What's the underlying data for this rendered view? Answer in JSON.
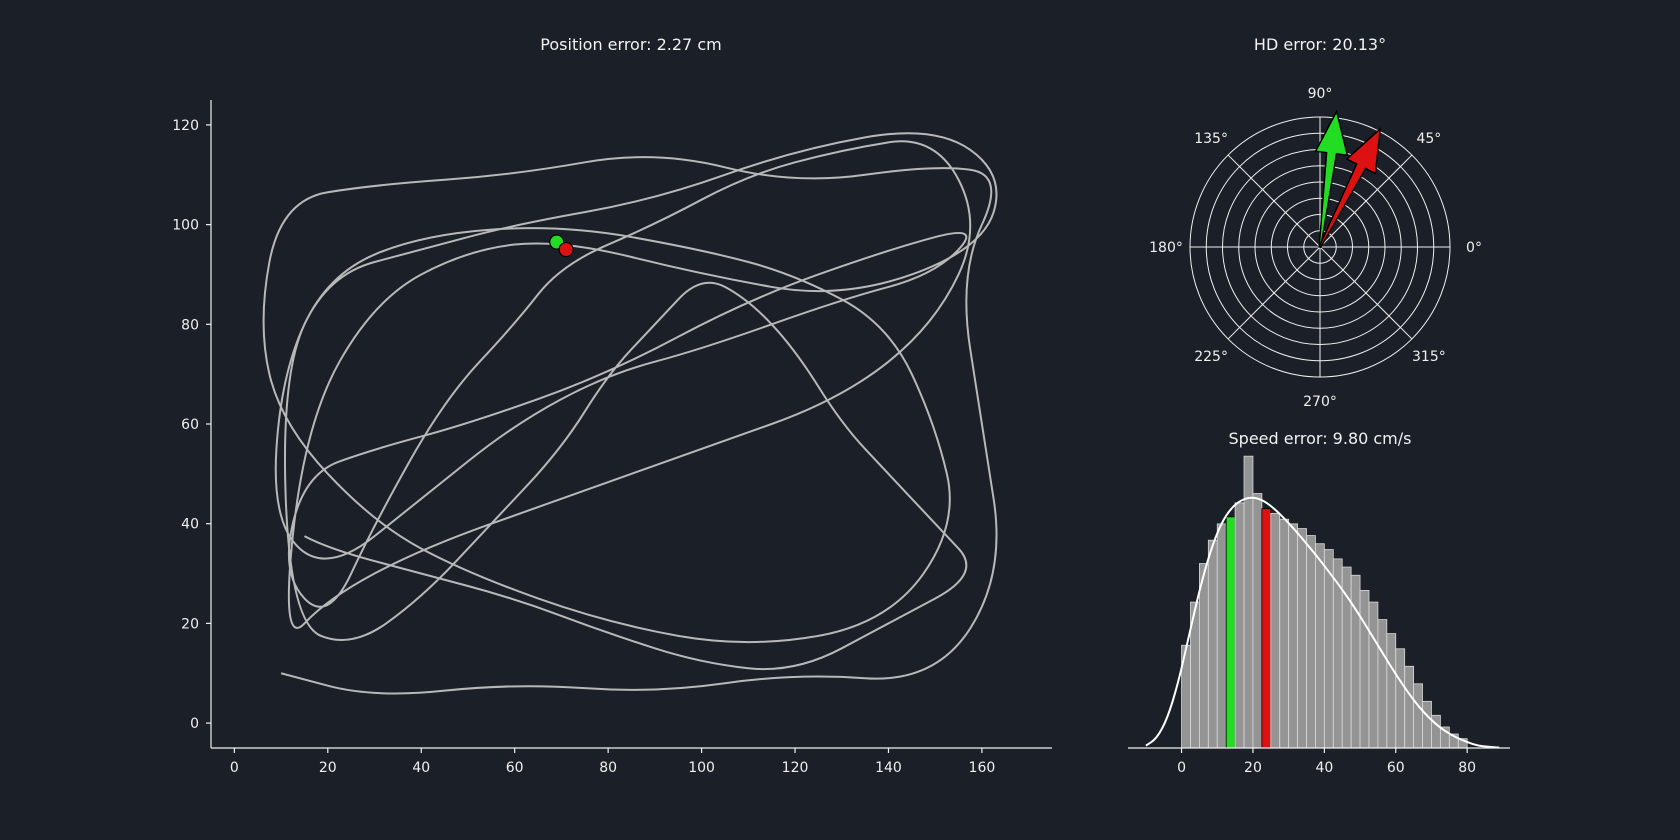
{
  "colors": {
    "background": "#1b1f27",
    "trajectory": "#b8b8b8",
    "true_marker": "#22dd22",
    "pred_marker": "#dd1111",
    "axis": "#f0f0f0",
    "kde": "#ffffff",
    "histogram": "#a9a9a9"
  },
  "chart_data": [
    {
      "type": "line",
      "title": "Position error: 2.27 cm",
      "xlim": [
        -5,
        175
      ],
      "ylim": [
        -5,
        125
      ],
      "xticks": [
        0,
        20,
        40,
        60,
        80,
        100,
        120,
        140,
        160
      ],
      "yticks": [
        0,
        20,
        40,
        60,
        80,
        100,
        120
      ],
      "series": [
        {
          "x": [
            10,
            30,
            60,
            90,
            120,
            150,
            165,
            160,
            155,
            165,
            150,
            120,
            90,
            60,
            30,
            10,
            5,
            10,
            30,
            50,
            80,
            110,
            140,
            155,
            150,
            140,
            120,
            100,
            70,
            40,
            20,
            10,
            8,
            20,
            40,
            60,
            80,
            100,
            130,
            150,
            160,
            140,
            110,
            80,
            50,
            30,
            15,
            10,
            20,
            30,
            45,
            60,
            70,
            90,
            110,
            130,
            150,
            160,
            150,
            130,
            100,
            70,
            40,
            20,
            10,
            15,
            30,
            50,
            70,
            100,
            130,
            160,
            165,
            150,
            120,
            90,
            60,
            40,
            20,
            10,
            12,
            25,
            40,
            55,
            70,
            80,
            90,
            100,
            110,
            120,
            130,
            140,
            150,
            160,
            140,
            120,
            100,
            80,
            60,
            40,
            20,
            10
          ],
          "y": [
            10,
            5,
            8,
            6,
            10,
            8,
            30,
            60,
            90,
            110,
            112,
            108,
            115,
            110,
            108,
            105,
            80,
            60,
            40,
            30,
            20,
            15,
            20,
            40,
            60,
            80,
            90,
            95,
            100,
            98,
            90,
            70,
            40,
            30,
            45,
            60,
            70,
            75,
            85,
            90,
            100,
            95,
            85,
            70,
            60,
            55,
            50,
            30,
            20,
            40,
            65,
            80,
            92,
            100,
            110,
            115,
            118,
            100,
            80,
            65,
            55,
            45,
            35,
            25,
            15,
            60,
            85,
            95,
            97,
            90,
            85,
            95,
            110,
            120,
            115,
            105,
            100,
            95,
            90,
            70,
            20,
            15,
            25,
            40,
            55,
            70,
            80,
            90,
            85,
            75,
            60,
            50,
            40,
            30,
            20,
            10,
            12,
            18,
            25,
            30,
            35,
            40
          ]
        }
      ],
      "markers": [
        {
          "label": "true",
          "x": 69,
          "y": 96.5,
          "color": "#22dd22"
        },
        {
          "label": "predicted",
          "x": 71,
          "y": 95,
          "color": "#dd1111"
        }
      ]
    },
    {
      "type": "polar",
      "title": "HD error: 20.13°",
      "angle_ticks": [
        "0°",
        "45°",
        "90°",
        "135°",
        "180°",
        "225°",
        "270°",
        "315°"
      ],
      "radial_rings": 8,
      "arrows": [
        {
          "label": "true",
          "angle_deg": 83,
          "length": 1.05,
          "color": "#22dd22"
        },
        {
          "label": "predicted",
          "angle_deg": 63,
          "length": 1.02,
          "color": "#dd1111"
        }
      ]
    },
    {
      "type": "bar",
      "title": "Speed error: 9.80 cm/s",
      "xlim": [
        -15,
        92
      ],
      "ylim": [
        0,
        0.0245
      ],
      "xticks": [
        0,
        20,
        40,
        60,
        80
      ],
      "bin_width": 2.5,
      "bin_start": 0,
      "values": [
        0.0088,
        0.0125,
        0.0158,
        0.0178,
        0.0192,
        0.0198,
        0.021,
        0.025,
        0.0218,
        0.0205,
        0.0201,
        0.0196,
        0.0192,
        0.0188,
        0.0182,
        0.0175,
        0.017,
        0.0162,
        0.0155,
        0.0148,
        0.0135,
        0.0125,
        0.011,
        0.0098,
        0.0085,
        0.007,
        0.0055,
        0.004,
        0.0028,
        0.0018,
        0.0012,
        0.0008
      ],
      "highlights": [
        {
          "label": "true",
          "bin_index": 5,
          "color": "#22dd22"
        },
        {
          "label": "predicted",
          "bin_index": 9,
          "color": "#dd1111"
        }
      ],
      "kde": {
        "x": [
          -10,
          -7,
          -4,
          -1,
          2,
          5,
          8,
          11,
          14,
          17,
          20,
          23,
          26,
          29,
          32,
          35,
          38,
          41,
          44,
          47,
          50,
          53,
          56,
          59,
          62,
          65,
          68,
          71,
          74,
          77,
          80,
          83,
          86,
          89
        ],
        "y": [
          0.0002,
          0.0008,
          0.0025,
          0.0055,
          0.0095,
          0.0135,
          0.0168,
          0.0192,
          0.0206,
          0.0213,
          0.0215,
          0.0212,
          0.0205,
          0.0196,
          0.0186,
          0.0175,
          0.0164,
          0.0152,
          0.014,
          0.0127,
          0.0113,
          0.0098,
          0.0083,
          0.0068,
          0.0054,
          0.0041,
          0.003,
          0.0021,
          0.0014,
          0.0009,
          0.0005,
          0.0002,
          0.0001,
          3e-05
        ]
      }
    }
  ]
}
